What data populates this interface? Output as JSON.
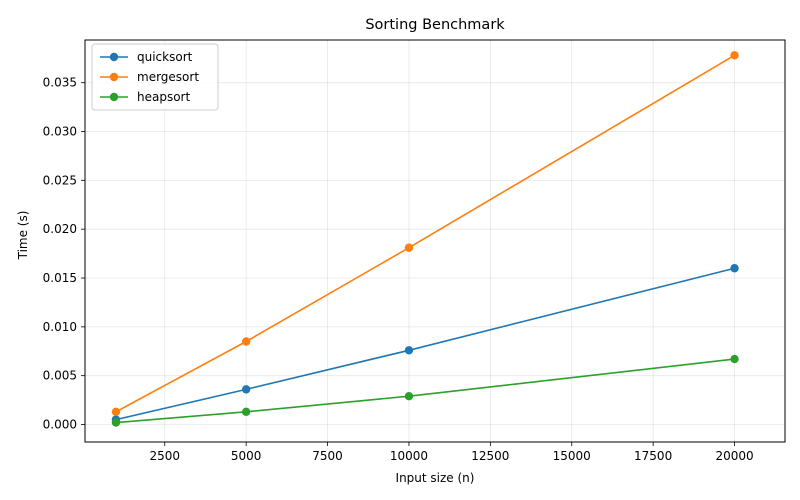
{
  "chart_data": {
    "type": "line",
    "title": "Sorting Benchmark",
    "xlabel": "Input size (n)",
    "ylabel": "Time (s)",
    "x": [
      1000,
      5000,
      10000,
      20000
    ],
    "xlim": [
      50,
      21550
    ],
    "ylim": [
      -0.00179,
      0.03937
    ],
    "xticks": [
      2500,
      5000,
      7500,
      10000,
      12500,
      15000,
      17500,
      20000
    ],
    "xtick_labels": [
      "2500",
      "5000",
      "7500",
      "10000",
      "12500",
      "15000",
      "17500",
      "20000"
    ],
    "yticks": [
      0.0,
      0.005,
      0.01,
      0.015,
      0.02,
      0.025,
      0.03,
      0.035
    ],
    "ytick_labels": [
      "0.000",
      "0.005",
      "0.010",
      "0.015",
      "0.020",
      "0.025",
      "0.030",
      "0.035"
    ],
    "grid": true,
    "legend_position": "upper left",
    "series": [
      {
        "name": "quicksort",
        "color": "#1f77b4",
        "values": [
          0.0005,
          0.0036,
          0.0076,
          0.016
        ]
      },
      {
        "name": "mergesort",
        "color": "#ff7f0e",
        "values": [
          0.0013,
          0.0085,
          0.0181,
          0.0378
        ]
      },
      {
        "name": "heapsort",
        "color": "#2ca02c",
        "values": [
          0.0002,
          0.0013,
          0.0029,
          0.0067
        ]
      }
    ]
  }
}
